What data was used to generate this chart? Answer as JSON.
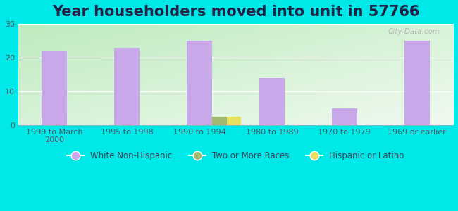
{
  "title": "Year householders moved into unit in 57766",
  "categories": [
    "1999 to March\n2000",
    "1995 to 1998",
    "1990 to 1994",
    "1980 to 1989",
    "1970 to 1979",
    "1969 or earlier"
  ],
  "white_non_hispanic": [
    22,
    23,
    25,
    14,
    5,
    25
  ],
  "two_or_more_races": [
    0,
    0,
    2.5,
    0,
    0,
    0
  ],
  "hispanic_or_latino": [
    0,
    0,
    2.5,
    0,
    0,
    0
  ],
  "bar_width": 0.35,
  "small_bar_width": 0.2,
  "ylim": [
    0,
    30
  ],
  "yticks": [
    0,
    10,
    20,
    30
  ],
  "color_white": "#c8a8e8",
  "color_two_more": "#a0b870",
  "color_hispanic": "#e8e060",
  "bg_outer": "#00e8e8",
  "bg_plot_top_left": "#c8e8c8",
  "bg_plot_bottom_right": "#f0f8f0",
  "watermark": "City-Data.com",
  "legend_labels": [
    "White Non-Hispanic",
    "Two or More Races",
    "Hispanic or Latino"
  ],
  "title_fontsize": 15,
  "tick_fontsize": 8,
  "title_color": "#222244"
}
